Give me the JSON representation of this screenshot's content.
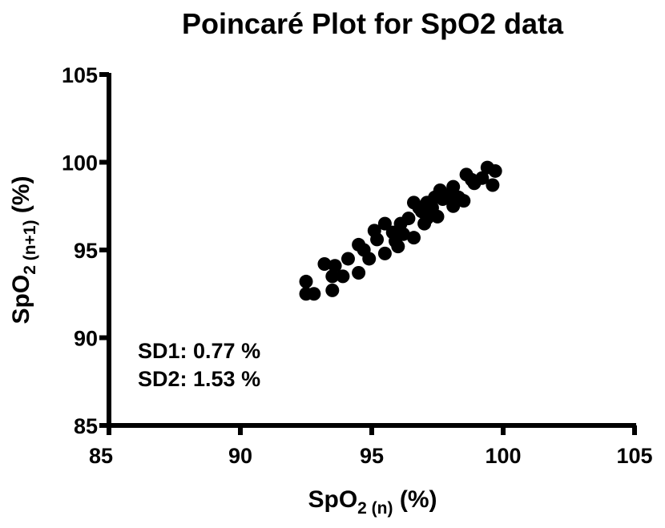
{
  "chart_data": {
    "type": "scatter",
    "title": "Poincaré Plot for SpO2 data",
    "xlabel": {
      "main": "SpO",
      "sub": "2 (n)",
      "unit": " (%)"
    },
    "ylabel": {
      "main": "SpO",
      "sub": "2 (n+1)",
      "unit": " (%)"
    },
    "xlim": [
      85,
      105
    ],
    "ylim": [
      85,
      105
    ],
    "xticks": [
      85,
      90,
      95,
      100,
      105
    ],
    "yticks": [
      85,
      90,
      95,
      100,
      105
    ],
    "grid": false,
    "marker_color": "#000000",
    "annotations": [
      "SD1: 0.77 %",
      "SD2: 1.53 %"
    ],
    "points": [
      [
        92.5,
        93.2
      ],
      [
        92.5,
        92.5
      ],
      [
        92.8,
        92.5
      ],
      [
        93.2,
        94.2
      ],
      [
        93.6,
        94.1
      ],
      [
        93.5,
        92.7
      ],
      [
        93.5,
        93.5
      ],
      [
        93.9,
        93.5
      ],
      [
        94.1,
        94.5
      ],
      [
        94.5,
        95.3
      ],
      [
        94.5,
        93.7
      ],
      [
        94.9,
        94.5
      ],
      [
        95.1,
        96.1
      ],
      [
        95.5,
        94.8
      ],
      [
        95.5,
        96.5
      ],
      [
        95.9,
        95.5
      ],
      [
        96.1,
        96.5
      ],
      [
        96.6,
        95.7
      ],
      [
        96.6,
        97.7
      ],
      [
        97.1,
        96.8
      ],
      [
        97.1,
        97.7
      ],
      [
        97.5,
        96.9
      ],
      [
        97.6,
        98.4
      ],
      [
        98.1,
        98.6
      ],
      [
        98.1,
        97.5
      ],
      [
        98.5,
        97.8
      ],
      [
        98.6,
        99.3
      ],
      [
        98.9,
        98.8
      ],
      [
        99.4,
        99.7
      ],
      [
        99.7,
        99.5
      ],
      [
        99.6,
        98.7
      ],
      [
        95.8,
        96.0
      ],
      [
        96.2,
        95.9
      ],
      [
        96.4,
        96.8
      ],
      [
        96.9,
        97.2
      ],
      [
        97.3,
        97.4
      ],
      [
        97.7,
        97.9
      ],
      [
        98.0,
        98.2
      ],
      [
        98.3,
        98.0
      ],
      [
        97.0,
        96.5
      ],
      [
        96.0,
        95.2
      ],
      [
        95.2,
        95.6
      ],
      [
        94.7,
        95.0
      ],
      [
        99.2,
        99.1
      ],
      [
        98.8,
        99.0
      ],
      [
        97.4,
        98.0
      ],
      [
        96.8,
        97.4
      ]
    ]
  }
}
